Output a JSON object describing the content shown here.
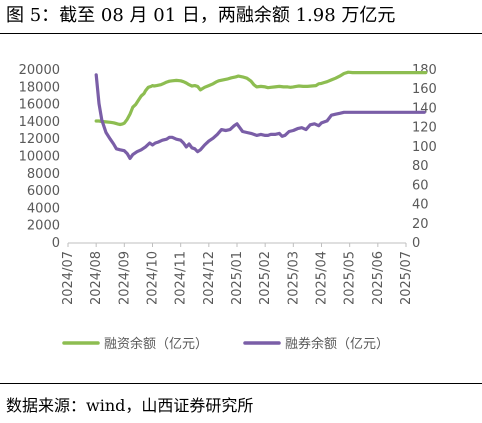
{
  "title": "图 5：截至 08 月 01 日，两融余额 1.98 万亿元",
  "source": "数据来源：wind，山西证券研究所",
  "chart_data": {
    "type": "line",
    "title": "图 5：截至 08 月 01 日，两融余额 1.98 万亿元",
    "categories": [
      "2024/07",
      "2024/08",
      "2024/09",
      "2024/10",
      "2024/11",
      "2024/12",
      "2025/01",
      "2025/02",
      "2025/03",
      "2025/04",
      "2025/05",
      "2025/06",
      "2025/07"
    ],
    "y_left": {
      "min": 0,
      "max": 20000,
      "step": 2000,
      "ticks": [
        "0",
        "2000",
        "4000",
        "6000",
        "8000",
        "10000",
        "12000",
        "14000",
        "16000",
        "18000",
        "20000"
      ]
    },
    "y_right": {
      "min": 0,
      "max": 180,
      "step": 20,
      "ticks": [
        "0",
        "20",
        "40",
        "60",
        "80",
        "100",
        "120",
        "140",
        "160",
        "180"
      ]
    },
    "legend_position": "bottom",
    "grid": false,
    "series": [
      {
        "name": "融资余额（亿元）",
        "axis": "left",
        "color": "#8dbd51",
        "x": [
          1.0,
          1.1,
          1.2,
          1.35,
          1.5,
          1.62,
          1.72,
          1.78,
          1.85,
          1.92,
          2.0,
          2.1,
          2.2,
          2.25,
          2.3,
          2.4,
          2.5,
          2.6,
          2.7,
          2.75,
          2.85,
          2.95,
          3.0,
          3.05,
          3.15,
          3.3,
          3.4,
          3.5,
          3.6,
          3.7,
          3.85,
          4.0,
          4.1,
          4.2,
          4.3,
          4.4,
          4.5,
          4.6,
          4.7,
          4.85,
          5.0,
          5.15,
          5.25,
          5.35,
          5.5,
          5.65,
          5.8,
          5.95,
          6.05,
          6.2,
          6.35,
          6.5,
          6.6,
          6.7,
          6.85,
          7.0,
          7.1,
          7.2,
          7.35,
          7.5,
          7.65,
          7.8,
          7.9,
          8.0,
          8.1,
          8.2,
          8.35,
          8.5,
          8.65,
          8.8,
          8.9,
          9.0,
          9.1,
          9.2,
          9.35,
          9.5,
          9.65,
          9.8,
          9.95,
          10.1,
          10.25,
          10.4,
          10.55,
          10.7,
          10.85,
          11.0,
          11.15,
          11.3,
          11.45,
          11.6,
          11.75,
          11.9,
          12.05,
          12.2,
          12.35,
          12.5,
          12.7
        ],
        "values": [
          14100,
          14100,
          14050,
          14000,
          13950,
          13900,
          13800,
          13750,
          13700,
          13750,
          13850,
          14300,
          14900,
          15300,
          15700,
          16000,
          16500,
          17000,
          17300,
          17600,
          18000,
          18100,
          18200,
          18150,
          18200,
          18300,
          18450,
          18600,
          18700,
          18750,
          18800,
          18750,
          18650,
          18500,
          18300,
          18150,
          18200,
          18100,
          17700,
          18000,
          18200,
          18400,
          18600,
          18750,
          18850,
          18950,
          19100,
          19200,
          19300,
          19200,
          19050,
          18700,
          18300,
          18050,
          18100,
          18050,
          17950,
          18000,
          18050,
          18100,
          18050,
          18050,
          18000,
          18050,
          18100,
          18150,
          18100,
          18100,
          18150,
          18200,
          18400,
          18450,
          18550,
          18650,
          18850,
          19050,
          19300,
          19600,
          19750,
          19700,
          19700,
          19700,
          19700,
          19700,
          19700,
          19700,
          19700,
          19700,
          19700,
          19700,
          19700,
          19700,
          19700,
          19700,
          19700,
          19700,
          19700
        ]
      },
      {
        "name": "融券余额（亿元）",
        "axis": "right",
        "color": "#7a5ea7",
        "x": [
          1.0,
          1.1,
          1.2,
          1.35,
          1.5,
          1.62,
          1.72,
          1.85,
          2.0,
          2.1,
          2.2,
          2.3,
          2.45,
          2.6,
          2.75,
          2.9,
          3.0,
          3.1,
          3.2,
          3.35,
          3.5,
          3.6,
          3.7,
          3.85,
          4.0,
          4.1,
          4.2,
          4.3,
          4.4,
          4.5,
          4.6,
          4.7,
          4.85,
          5.0,
          5.15,
          5.3,
          5.45,
          5.6,
          5.75,
          5.9,
          6.0,
          6.1,
          6.2,
          6.35,
          6.5,
          6.6,
          6.7,
          6.85,
          7.0,
          7.1,
          7.2,
          7.35,
          7.5,
          7.6,
          7.7,
          7.85,
          8.0,
          8.15,
          8.3,
          8.45,
          8.6,
          8.75,
          8.9,
          9.0,
          9.1,
          9.2,
          9.35,
          9.5,
          9.65,
          9.8,
          9.95,
          10.1,
          10.25,
          10.4,
          10.55,
          10.7,
          10.85,
          11.0,
          11.15,
          11.3,
          11.45,
          11.6,
          11.75,
          11.9,
          12.05,
          12.2,
          12.35,
          12.5,
          12.65
        ],
        "values": [
          175,
          145,
          128,
          115,
          108,
          103,
          98,
          97,
          96,
          93,
          88,
          92,
          95,
          97,
          100,
          104,
          102,
          104,
          105,
          107,
          108,
          110,
          110,
          108,
          107,
          104,
          100,
          103,
          99,
          98,
          95,
          97,
          102,
          106,
          109,
          113,
          118,
          117,
          118,
          122,
          124,
          120,
          116,
          115,
          114,
          113,
          112,
          113,
          112,
          112,
          113,
          113,
          114,
          111,
          112,
          116,
          117,
          119,
          120,
          118,
          123,
          124,
          122,
          125,
          126,
          127,
          133,
          134,
          135,
          136,
          136,
          136,
          136,
          136,
          136,
          136,
          136,
          136,
          136,
          136,
          136,
          136,
          136,
          136,
          136,
          136,
          136,
          136,
          136
        ]
      }
    ]
  }
}
